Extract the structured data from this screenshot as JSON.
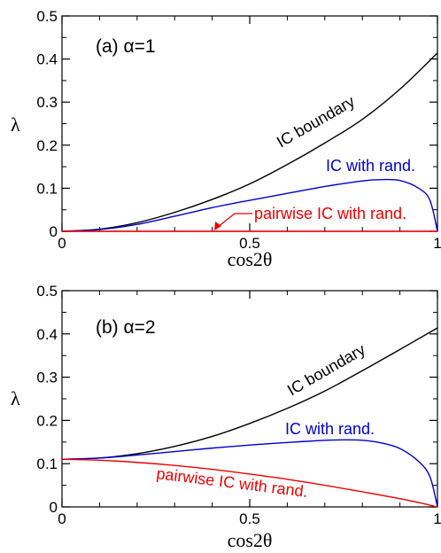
{
  "chart_data": [
    {
      "type": "line",
      "panel_label": "(a) α=1",
      "xlabel": "cos2θ",
      "ylabel": "λ",
      "xlim": [
        0,
        1
      ],
      "ylim": [
        0,
        0.5
      ],
      "x_ticks": [
        0,
        0.5,
        1
      ],
      "x_tick_labels": [
        "0",
        "0.5",
        "1"
      ],
      "y_ticks": [
        0,
        0.1,
        0.2,
        0.3,
        0.4,
        0.5
      ],
      "y_tick_labels": [
        "0",
        "0.1",
        "0.2",
        "0.3",
        "0.4",
        "0.5"
      ],
      "grid": false,
      "series": [
        {
          "name": "IC boundary",
          "color": "#000000",
          "x": [
            0,
            0.1,
            0.2,
            0.3,
            0.4,
            0.5,
            0.6,
            0.7,
            0.8,
            0.9,
            1.0
          ],
          "y": [
            0,
            0.005,
            0.02,
            0.044,
            0.074,
            0.11,
            0.155,
            0.205,
            0.26,
            0.33,
            0.414
          ]
        },
        {
          "name": "IC with rand.",
          "color": "#0000cc",
          "x": [
            0,
            0.1,
            0.2,
            0.3,
            0.4,
            0.5,
            0.6,
            0.7,
            0.8,
            0.85,
            0.9,
            0.95,
            0.98,
            1.0
          ],
          "y": [
            0,
            0.004,
            0.016,
            0.035,
            0.055,
            0.072,
            0.088,
            0.104,
            0.117,
            0.12,
            0.118,
            0.1,
            0.072,
            0.0
          ]
        },
        {
          "name": "pairwise IC with rand.",
          "color": "#ee0000",
          "x": [
            0,
            0.25,
            0.5,
            0.75,
            1.0
          ],
          "y": [
            0,
            0,
            0,
            0,
            0
          ]
        }
      ],
      "annotations": [
        {
          "text": "IC boundary",
          "color": "#000000"
        },
        {
          "text": "IC with rand.",
          "color": "#0000cc"
        },
        {
          "text": "pairwise IC with rand.",
          "color": "#ee0000",
          "arrow_to": [
            0.4,
            0.0
          ]
        }
      ]
    },
    {
      "type": "line",
      "panel_label": "(b) α=2",
      "xlabel": "cos2θ",
      "ylabel": "λ",
      "xlim": [
        0,
        1
      ],
      "ylim": [
        0,
        0.5
      ],
      "x_ticks": [
        0,
        0.5,
        1
      ],
      "x_tick_labels": [
        "0",
        "0.5",
        "1"
      ],
      "y_ticks": [
        0,
        0.1,
        0.2,
        0.3,
        0.4,
        0.5
      ],
      "y_tick_labels": [
        "0",
        "0.1",
        "0.2",
        "0.3",
        "0.4",
        "0.5"
      ],
      "grid": false,
      "series": [
        {
          "name": "IC boundary",
          "color": "#000000",
          "x": [
            0,
            0.1,
            0.2,
            0.3,
            0.4,
            0.5,
            0.6,
            0.7,
            0.8,
            0.9,
            1.0
          ],
          "y": [
            0.11,
            0.113,
            0.123,
            0.14,
            0.163,
            0.193,
            0.228,
            0.268,
            0.315,
            0.364,
            0.414
          ]
        },
        {
          "name": "IC with rand.",
          "color": "#0000cc",
          "x": [
            0,
            0.1,
            0.2,
            0.3,
            0.4,
            0.5,
            0.6,
            0.7,
            0.75,
            0.8,
            0.85,
            0.9,
            0.95,
            0.98,
            1.0
          ],
          "y": [
            0.11,
            0.113,
            0.12,
            0.128,
            0.136,
            0.143,
            0.149,
            0.154,
            0.155,
            0.154,
            0.148,
            0.135,
            0.105,
            0.07,
            0.0
          ]
        },
        {
          "name": "pairwise IC with rand.",
          "color": "#ee0000",
          "x": [
            0,
            0.1,
            0.2,
            0.3,
            0.4,
            0.5,
            0.6,
            0.7,
            0.8,
            0.9,
            0.95,
            0.98,
            1.0
          ],
          "y": [
            0.11,
            0.108,
            0.103,
            0.096,
            0.087,
            0.076,
            0.064,
            0.05,
            0.035,
            0.019,
            0.01,
            0.004,
            0.0
          ]
        }
      ],
      "annotations": [
        {
          "text": "IC boundary",
          "color": "#000000"
        },
        {
          "text": "IC with rand.",
          "color": "#0000cc"
        },
        {
          "text": "pairwise IC with rand.",
          "color": "#ee0000"
        }
      ]
    }
  ]
}
